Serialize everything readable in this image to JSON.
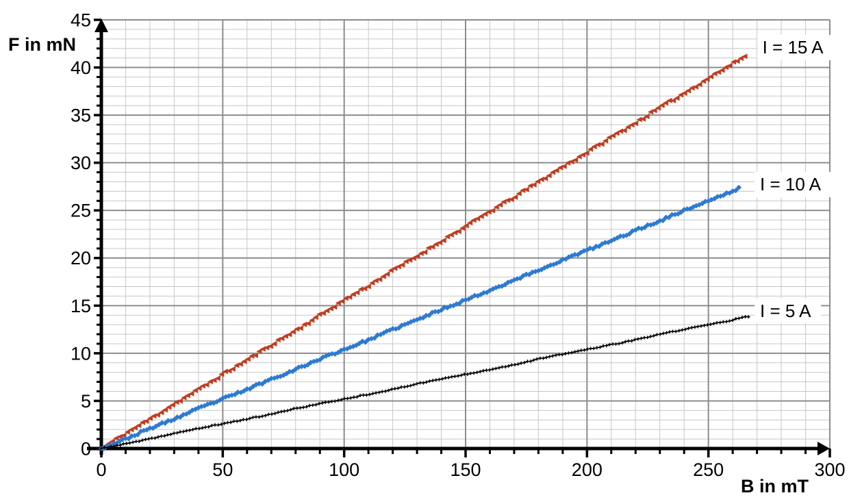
{
  "figure": {
    "background": "#ffffff"
  },
  "chart_data": {
    "type": "scatter",
    "title": "",
    "xlabel": "B in mT",
    "ylabel": "F in mN",
    "xlim": [
      0,
      300
    ],
    "ylim": [
      0,
      45
    ],
    "x_major_ticks": [
      0,
      50,
      100,
      150,
      200,
      250,
      300
    ],
    "x_minor_step": 10,
    "y_major_ticks": [
      0,
      5,
      10,
      15,
      20,
      25,
      30,
      35,
      40,
      45
    ],
    "y_minor_step": 1,
    "grid": {
      "major_color": "#8c8c8c",
      "minor_color": "#c7c7c7",
      "major_width": 2,
      "minor_width": 1
    },
    "axis_color": "#000000",
    "series": [
      {
        "name": "I = 15 A",
        "marker": "triangle-left",
        "marker_color": "#c23b22",
        "line_color": "#9bbb59",
        "noise": 0.13,
        "style": {
          "marker_size": 8,
          "step_mT": 1.55,
          "line_width": 2.6,
          "seed": 11
        },
        "points": [
          [
            0,
            0
          ],
          [
            10,
            1.6
          ],
          [
            20,
            3.1
          ],
          [
            30,
            4.7
          ],
          [
            40,
            6.2
          ],
          [
            50,
            7.8
          ],
          [
            60,
            9.3
          ],
          [
            70,
            10.9
          ],
          [
            80,
            12.4
          ],
          [
            90,
            14.0
          ],
          [
            100,
            15.6
          ],
          [
            110,
            17.1
          ],
          [
            120,
            18.7
          ],
          [
            130,
            20.2
          ],
          [
            140,
            21.8
          ],
          [
            150,
            23.3
          ],
          [
            160,
            24.9
          ],
          [
            170,
            26.4
          ],
          [
            180,
            28.0
          ],
          [
            190,
            29.6
          ],
          [
            200,
            31.1
          ],
          [
            210,
            32.7
          ],
          [
            220,
            34.2
          ],
          [
            230,
            35.8
          ],
          [
            240,
            37.3
          ],
          [
            250,
            38.9
          ],
          [
            260,
            40.4
          ],
          [
            266,
            41.4
          ]
        ]
      },
      {
        "name": "I = 10 A",
        "marker": "diamond",
        "marker_color": "#2e7ad1",
        "line_color": "#2e7ad1",
        "noise": 0.11,
        "style": {
          "marker_size": 8,
          "step_mT": 1.25,
          "line_width": 3.5,
          "seed": 23
        },
        "points": [
          [
            0,
            0
          ],
          [
            10,
            1.0
          ],
          [
            20,
            2.1
          ],
          [
            30,
            3.1
          ],
          [
            40,
            4.2
          ],
          [
            50,
            5.2
          ],
          [
            60,
            6.2
          ],
          [
            70,
            7.3
          ],
          [
            80,
            8.3
          ],
          [
            90,
            9.4
          ],
          [
            100,
            10.4
          ],
          [
            110,
            11.4
          ],
          [
            120,
            12.5
          ],
          [
            130,
            13.5
          ],
          [
            140,
            14.6
          ],
          [
            150,
            15.6
          ],
          [
            160,
            16.6
          ],
          [
            170,
            17.7
          ],
          [
            180,
            18.7
          ],
          [
            190,
            19.8
          ],
          [
            200,
            20.8
          ],
          [
            210,
            21.8
          ],
          [
            220,
            22.9
          ],
          [
            230,
            23.9
          ],
          [
            240,
            25.0
          ],
          [
            250,
            26.0
          ],
          [
            260,
            27.0
          ],
          [
            263,
            27.4
          ]
        ]
      },
      {
        "name": "I = 5 A",
        "marker": "plus",
        "marker_color": "#000000",
        "line_color": "#000000",
        "noise": 0.05,
        "style": {
          "marker_size": 5,
          "step_mT": 1.3,
          "line_width": 1.7,
          "seed": 37
        },
        "points": [
          [
            0,
            0
          ],
          [
            10,
            0.5
          ],
          [
            20,
            1.0
          ],
          [
            30,
            1.6
          ],
          [
            40,
            2.1
          ],
          [
            50,
            2.6
          ],
          [
            60,
            3.1
          ],
          [
            70,
            3.6
          ],
          [
            80,
            4.2
          ],
          [
            90,
            4.7
          ],
          [
            100,
            5.2
          ],
          [
            110,
            5.7
          ],
          [
            120,
            6.2
          ],
          [
            130,
            6.8
          ],
          [
            140,
            7.3
          ],
          [
            150,
            7.8
          ],
          [
            160,
            8.3
          ],
          [
            170,
            8.8
          ],
          [
            180,
            9.4
          ],
          [
            190,
            9.9
          ],
          [
            200,
            10.4
          ],
          [
            210,
            10.9
          ],
          [
            220,
            11.4
          ],
          [
            230,
            12.0
          ],
          [
            240,
            12.5
          ],
          [
            250,
            13.0
          ],
          [
            260,
            13.5
          ],
          [
            267,
            13.9
          ]
        ]
      }
    ],
    "annotations": [
      {
        "text": "I = 15 A",
        "B": 270,
        "F": 41.9
      },
      {
        "text": "I = 10 A",
        "B": 269,
        "F": 27.5
      },
      {
        "text": "I = 5 A",
        "B": 269,
        "F": 14.25
      }
    ],
    "legend_position": "inline-right",
    "grid_on": true
  }
}
